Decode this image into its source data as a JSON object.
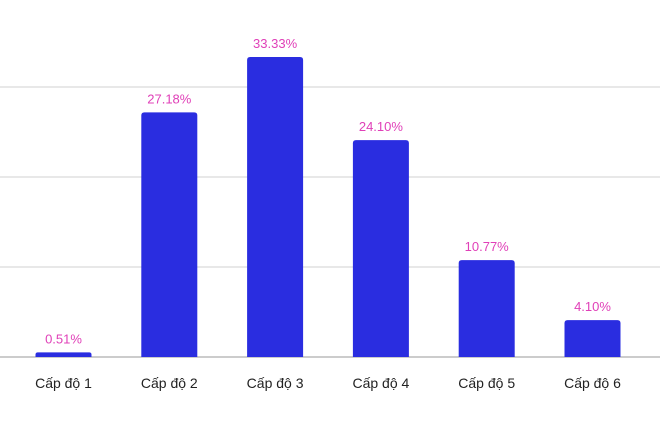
{
  "chart_data": {
    "type": "bar",
    "categories": [
      "Cấp độ 1",
      "Cấp độ 2",
      "Cấp độ 3",
      "Cấp độ 4",
      "Cấp độ 5",
      "Cấp độ 6"
    ],
    "values": [
      0.51,
      27.18,
      33.33,
      24.1,
      10.77,
      4.1
    ],
    "data_labels": [
      "0.51%",
      "27.18%",
      "33.33%",
      "24.10%",
      "10.77%",
      "4.10%"
    ],
    "title": "",
    "xlabel": "",
    "ylabel": "",
    "ylim": [
      0,
      40
    ],
    "grid": true,
    "colors": {
      "bar": "#2a2de0",
      "data_label": "#e040b8"
    }
  }
}
